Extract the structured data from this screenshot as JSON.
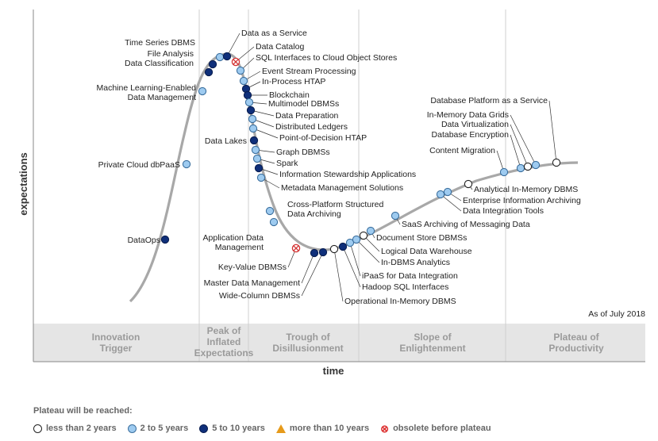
{
  "axes": {
    "x_label": "time",
    "y_label": "expectations"
  },
  "as_of": "As of July 2018",
  "phases": [
    {
      "lines": [
        "Innovation",
        "Trigger"
      ]
    },
    {
      "lines": [
        "Peak of",
        "Inflated",
        "Expectations"
      ]
    },
    {
      "lines": [
        "Trough of",
        "Disillusionment"
      ]
    },
    {
      "lines": [
        "Slope of",
        "Enlightenment"
      ]
    },
    {
      "lines": [
        "Plateau of",
        "Productivity"
      ]
    }
  ],
  "technologies": [
    {
      "id": "dataops",
      "label": [
        "DataOps"
      ],
      "status": "dark"
    },
    {
      "id": "private-cloud",
      "label": [
        "Private Cloud dbPaaS"
      ],
      "status": "light"
    },
    {
      "id": "ml-enabled",
      "label": [
        "Machine Learning-Enabled",
        "Data Management"
      ],
      "status": "light"
    },
    {
      "id": "data-classification",
      "label": [
        "Data Classification"
      ],
      "status": "dark"
    },
    {
      "id": "file-analysis",
      "label": [
        "File Analysis"
      ],
      "status": "dark"
    },
    {
      "id": "time-series",
      "label": [
        "Time Series DBMS"
      ],
      "status": "light"
    },
    {
      "id": "data-as-a-service",
      "label": [
        "Data as a Service"
      ],
      "status": "dark"
    },
    {
      "id": "data-catalog",
      "label": [
        "Data Catalog"
      ],
      "status": "obsolete"
    },
    {
      "id": "sql-interfaces",
      "label": [
        "SQL Interfaces to Cloud Object Stores"
      ],
      "status": "light"
    },
    {
      "id": "event-stream",
      "label": [
        "Event Stream Processing"
      ],
      "status": "light"
    },
    {
      "id": "in-process-htap",
      "label": [
        "In-Process HTAP"
      ],
      "status": "dark"
    },
    {
      "id": "blockchain",
      "label": [
        "Blockchain"
      ],
      "status": "dark"
    },
    {
      "id": "multimodel",
      "label": [
        "Multimodel DBMSs"
      ],
      "status": "light"
    },
    {
      "id": "data-preparation",
      "label": [
        "Data Preparation"
      ],
      "status": "dark"
    },
    {
      "id": "distributed-ledgers",
      "label": [
        "Distributed Ledgers"
      ],
      "status": "light"
    },
    {
      "id": "pod-htap",
      "label": [
        "Point-of-Decision HTAP"
      ],
      "status": "light"
    },
    {
      "id": "data-lakes",
      "label": [
        "Data Lakes"
      ],
      "status": "dark"
    },
    {
      "id": "graph-dbms",
      "label": [
        "Graph DBMSs"
      ],
      "status": "light"
    },
    {
      "id": "spark",
      "label": [
        "Spark"
      ],
      "status": "light"
    },
    {
      "id": "info-stewardship",
      "label": [
        "Information Stewardship Applications"
      ],
      "status": "dark"
    },
    {
      "id": "metadata-mgmt",
      "label": [
        "Metadata Management Solutions"
      ],
      "status": "light"
    },
    {
      "id": "cross-platform",
      "label": [
        "Cross-Platform Structured",
        "Data Archiving"
      ],
      "status": "light"
    },
    {
      "id": "app-data-mgmt",
      "label": [
        "Application Data",
        "Management"
      ],
      "status": "light"
    },
    {
      "id": "key-value",
      "label": [
        "Key-Value DBMSs"
      ],
      "status": "obsolete"
    },
    {
      "id": "master-data",
      "label": [
        "Master Data Management"
      ],
      "status": "dark"
    },
    {
      "id": "wide-column",
      "label": [
        "Wide-Column DBMSs"
      ],
      "status": "dark"
    },
    {
      "id": "operational-imdbms",
      "label": [
        "Operational In-Memory DBMS"
      ],
      "status": "white"
    },
    {
      "id": "hadoop-sql",
      "label": [
        "Hadoop SQL Interfaces"
      ],
      "status": "dark"
    },
    {
      "id": "ipaas",
      "label": [
        "iPaaS for Data Integration"
      ],
      "status": "light"
    },
    {
      "id": "in-dbms-analytics",
      "label": [
        "In-DBMS Analytics"
      ],
      "status": "light"
    },
    {
      "id": "logical-dw",
      "label": [
        "Logical Data Warehouse"
      ],
      "status": "white"
    },
    {
      "id": "document-store",
      "label": [
        "Document Store DBMSs"
      ],
      "status": "light"
    },
    {
      "id": "saas-archiving",
      "label": [
        "SaaS Archiving of Messaging Data"
      ],
      "status": "light"
    },
    {
      "id": "data-integration-tools",
      "label": [
        "Data Integration Tools"
      ],
      "status": "light"
    },
    {
      "id": "enterprise-info-archiving",
      "label": [
        "Enterprise Information Archiving"
      ],
      "status": "light"
    },
    {
      "id": "analytical-imdbms",
      "label": [
        "Analytical In-Memory DBMS"
      ],
      "status": "white"
    },
    {
      "id": "content-migration",
      "label": [
        "Content Migration"
      ],
      "status": "light"
    },
    {
      "id": "database-encryption",
      "label": [
        "Database Encryption"
      ],
      "status": "light"
    },
    {
      "id": "data-virtualization",
      "label": [
        "Data Virtualization"
      ],
      "status": "white"
    },
    {
      "id": "in-memory-grids",
      "label": [
        "In-Memory Data Grids"
      ],
      "status": "light"
    },
    {
      "id": "db-platform-service",
      "label": [
        "Database Platform as a Service"
      ],
      "status": "white"
    }
  ],
  "legend": {
    "title": "Plateau will be reached:",
    "items": [
      {
        "status": "white",
        "label": "less than 2 years"
      },
      {
        "status": "light",
        "label": "2 to 5 years"
      },
      {
        "status": "dark",
        "label": "5 to 10 years"
      },
      {
        "status": "triangle",
        "label": "more than 10 years"
      },
      {
        "status": "obsolete",
        "label": "obsolete before plateau"
      }
    ]
  },
  "colors": {
    "white": "#ffffff",
    "light": "#9ecbf0",
    "dark": "#0f2f7a",
    "triangle": "#e69a1a",
    "obsolete": "#d33333",
    "curve": "#a8a8a8"
  }
}
